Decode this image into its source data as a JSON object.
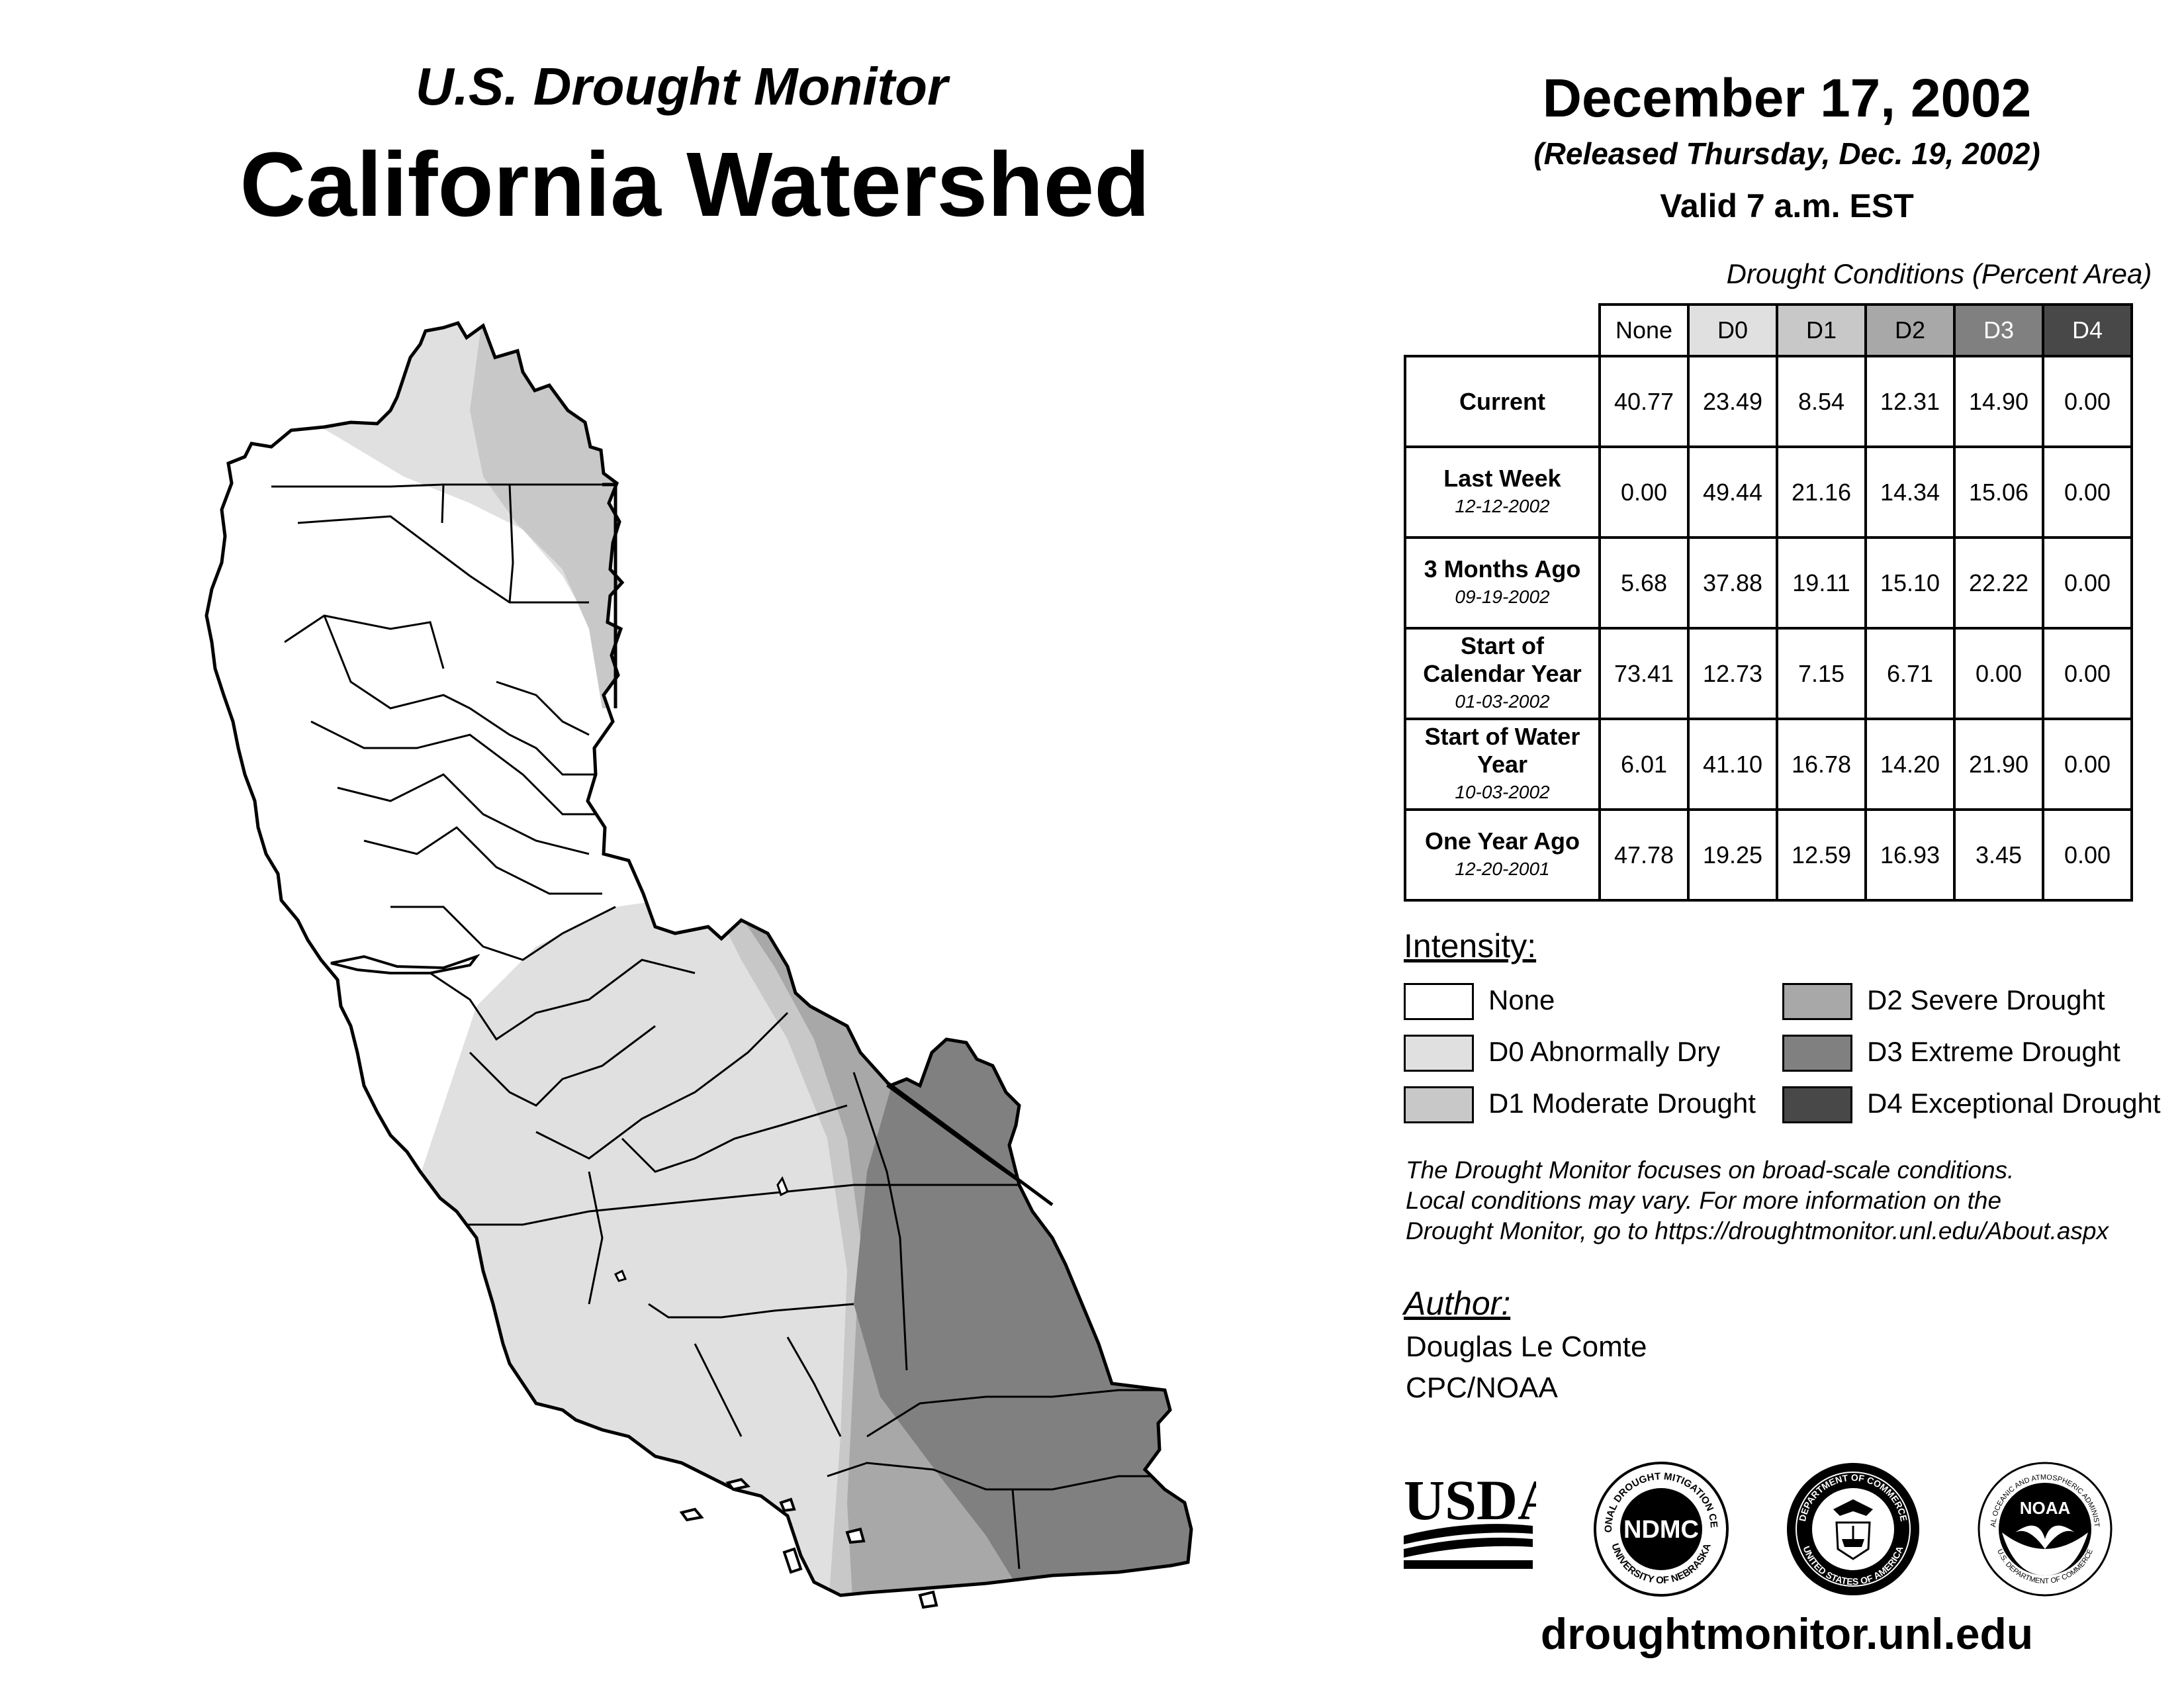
{
  "header": {
    "subtitle": "U.S. Drought Monitor",
    "title": "California Watershed",
    "date": "December 17, 2002",
    "released": "(Released Thursday, Dec. 19, 2002)",
    "valid": "Valid 7 a.m. EST"
  },
  "table": {
    "caption": "Drought Conditions (Percent Area)",
    "columns": [
      "None",
      "D0",
      "D1",
      "D2",
      "D3",
      "D4"
    ],
    "column_colors": [
      "#ffffff",
      "#e0e0e0",
      "#c8c8c8",
      "#a8a8a8",
      "#808080",
      "#484848"
    ],
    "rows": [
      {
        "label": "Current",
        "sub": "",
        "values": [
          "40.77",
          "23.49",
          "8.54",
          "12.31",
          "14.90",
          "0.00"
        ]
      },
      {
        "label": "Last Week",
        "sub": "12-12-2002",
        "values": [
          "0.00",
          "49.44",
          "21.16",
          "14.34",
          "15.06",
          "0.00"
        ]
      },
      {
        "label": "3 Months Ago",
        "sub": "09-19-2002",
        "values": [
          "5.68",
          "37.88",
          "19.11",
          "15.10",
          "22.22",
          "0.00"
        ]
      },
      {
        "label": "Start of Calendar Year",
        "sub": "01-03-2002",
        "values": [
          "73.41",
          "12.73",
          "7.15",
          "6.71",
          "0.00",
          "0.00"
        ]
      },
      {
        "label": "Start of Water Year",
        "sub": "10-03-2002",
        "values": [
          "6.01",
          "41.10",
          "16.78",
          "14.20",
          "21.90",
          "0.00"
        ]
      },
      {
        "label": "One Year Ago",
        "sub": "12-20-2001",
        "values": [
          "47.78",
          "19.25",
          "12.59",
          "16.93",
          "3.45",
          "0.00"
        ]
      }
    ]
  },
  "legend": {
    "heading": "Intensity:",
    "items": [
      {
        "label": "None",
        "color": "#ffffff"
      },
      {
        "label": "D0 Abnormally Dry",
        "color": "#e0e0e0"
      },
      {
        "label": "D1 Moderate Drought",
        "color": "#c8c8c8"
      },
      {
        "label": "D2 Severe Drought",
        "color": "#a8a8a8"
      },
      {
        "label": "D3 Extreme Drought",
        "color": "#808080"
      },
      {
        "label": "D4 Exceptional Drought",
        "color": "#484848"
      }
    ]
  },
  "disclaimer": {
    "line1": "The Drought Monitor focuses on broad-scale conditions.",
    "line2": "Local conditions may vary. For more information on the",
    "line3": "Drought Monitor, go to https://droughtmonitor.unl.edu/About.aspx"
  },
  "author": {
    "heading": "Author:",
    "name": "Douglas Le Comte",
    "org": "CPC/NOAA"
  },
  "logos": {
    "usda": "USDA",
    "ndmc": "NDMC",
    "ndmc_ring_top": "NATIONAL DROUGHT MITIGATION CENTER",
    "ndmc_ring_bottom": "UNIVERSITY OF NEBRASKA",
    "commerce_ring_top": "DEPARTMENT OF COMMERCE",
    "commerce_ring_bottom": "UNITED STATES OF AMERICA",
    "noaa": "NOAA",
    "noaa_ring_top": "NATIONAL OCEANIC AND ATMOSPHERIC ADMINISTRATION",
    "noaa_ring_bottom": "U.S. DEPARTMENT OF COMMERCE"
  },
  "site_url": "droughtmonitor.unl.edu"
}
